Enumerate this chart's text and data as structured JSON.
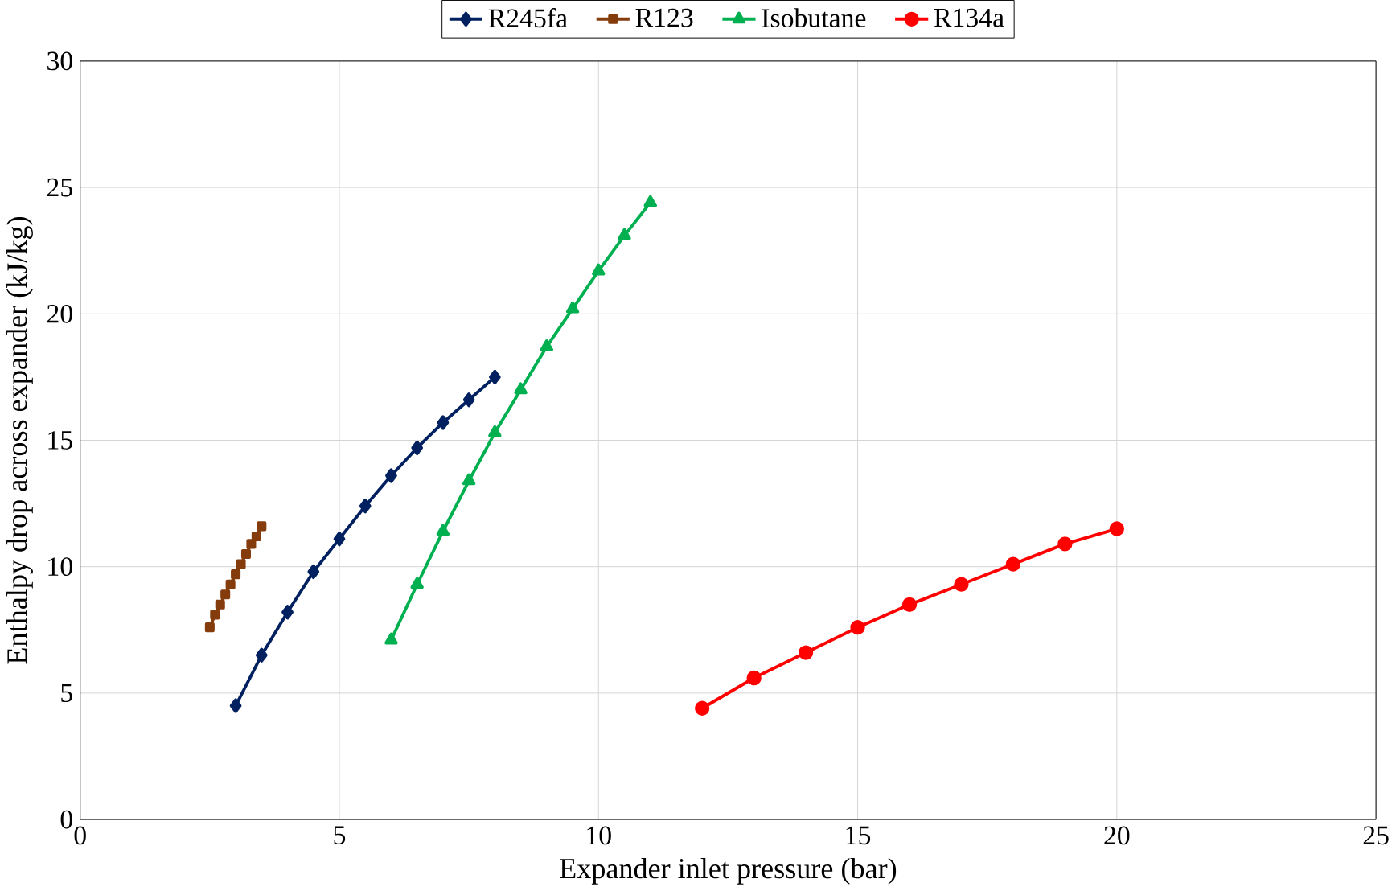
{
  "chart_data": {
    "type": "line",
    "xlabel": "Expander inlet pressure (bar)",
    "ylabel": "Enthalpy drop across expander (kJ/kg)",
    "xlim": [
      0,
      25
    ],
    "ylim": [
      0,
      30
    ],
    "xticks": [
      0,
      5,
      10,
      15,
      20,
      25
    ],
    "yticks": [
      0,
      5,
      10,
      15,
      20,
      25,
      30
    ],
    "grid": true,
    "legend": "top",
    "line_style": "solid",
    "series": [
      {
        "name": "R245fa",
        "color": "#002060",
        "marker": "diamond",
        "x": [
          3,
          3.5,
          4,
          4.5,
          5,
          5.5,
          6,
          6.5,
          7,
          7.5,
          8
        ],
        "values": [
          4.5,
          6.5,
          8.2,
          9.8,
          11.1,
          12.4,
          13.6,
          14.7,
          15.7,
          16.6,
          17.5
        ]
      },
      {
        "name": "R123",
        "color": "#843C0C",
        "marker": "square",
        "x": [
          2.5,
          2.6,
          2.7,
          2.8,
          2.9,
          3.0,
          3.1,
          3.2,
          3.3,
          3.4,
          3.5
        ],
        "values": [
          7.6,
          8.1,
          8.5,
          8.9,
          9.3,
          9.7,
          10.1,
          10.5,
          10.9,
          11.2,
          11.6
        ]
      },
      {
        "name": "Isobutane",
        "color": "#00B050",
        "marker": "triangle",
        "x": [
          6,
          6.5,
          7,
          7.5,
          8,
          8.5,
          9,
          9.5,
          10,
          10.5,
          11
        ],
        "values": [
          7.1,
          9.3,
          11.4,
          13.4,
          15.3,
          17.0,
          18.7,
          20.2,
          21.7,
          23.1,
          24.4
        ]
      },
      {
        "name": "R134a",
        "color": "#FF0000",
        "marker": "circle",
        "x": [
          12,
          13,
          14,
          15,
          16,
          17,
          18,
          19,
          20
        ],
        "values": [
          4.4,
          5.6,
          6.6,
          7.6,
          8.5,
          9.3,
          10.1,
          10.9,
          11.5
        ]
      }
    ]
  }
}
